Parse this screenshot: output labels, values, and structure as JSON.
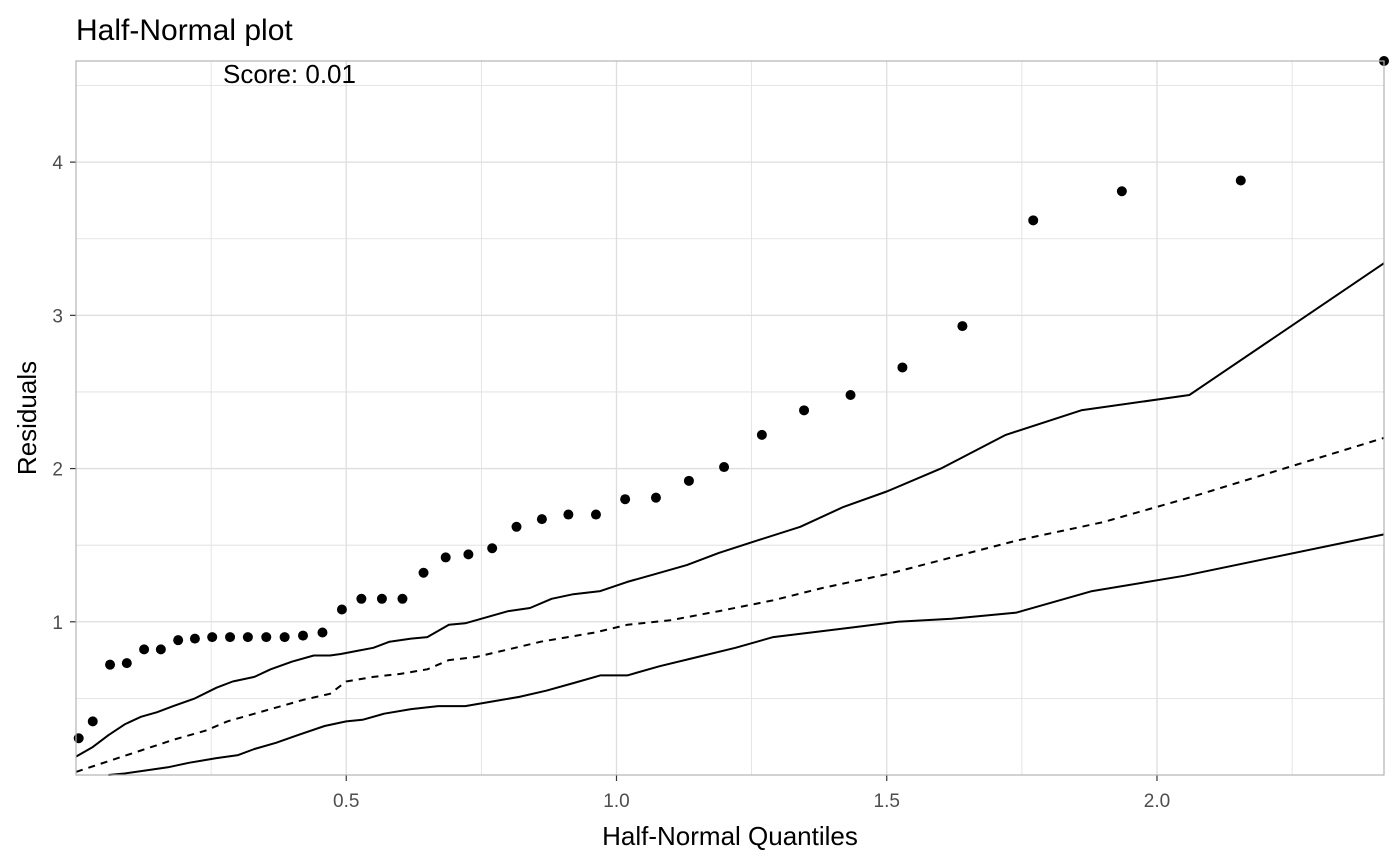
{
  "chart_data": {
    "type": "scatter",
    "title": "Half-Normal plot",
    "xlabel": "Half-Normal Quantiles",
    "ylabel": "Residuals",
    "annotation": "Score: 0.01",
    "xlim": [
      0.0,
      2.42
    ],
    "ylim": [
      0.0,
      4.66
    ],
    "x_ticks": [
      0.5,
      1.0,
      1.5,
      2.0
    ],
    "x_tick_labels": [
      "0.5",
      "1.0",
      "1.5",
      "2.0"
    ],
    "y_ticks": [
      1,
      2,
      3,
      4
    ],
    "y_tick_labels": [
      "1",
      "2",
      "3",
      "4"
    ],
    "grid": true,
    "colors": {
      "points": "#000000",
      "lines": "#000000",
      "grid": "#dedede",
      "panel_border": "#b3b3b3",
      "tick_label": "#4d4d4d"
    },
    "points": {
      "x": [
        0.005,
        0.031,
        0.063,
        0.094,
        0.126,
        0.157,
        0.189,
        0.22,
        0.252,
        0.285,
        0.318,
        0.352,
        0.386,
        0.42,
        0.456,
        0.492,
        0.528,
        0.566,
        0.604,
        0.643,
        0.684,
        0.726,
        0.77,
        0.815,
        0.862,
        0.911,
        0.962,
        1.016,
        1.073,
        1.134,
        1.199,
        1.269,
        1.347,
        1.433,
        1.529,
        1.64,
        1.771,
        1.935,
        2.155,
        2.42
      ],
      "y": [
        0.24,
        0.35,
        0.72,
        0.73,
        0.82,
        0.82,
        0.88,
        0.89,
        0.9,
        0.9,
        0.9,
        0.9,
        0.9,
        0.91,
        0.93,
        1.08,
        1.15,
        1.15,
        1.15,
        1.32,
        1.42,
        1.44,
        1.48,
        1.62,
        1.67,
        1.7,
        1.7,
        1.8,
        1.81,
        1.92,
        2.01,
        2.22,
        2.38,
        2.48,
        2.66,
        2.93,
        3.62,
        3.81,
        3.88,
        4.66
      ]
    },
    "series": [
      {
        "style": "solid",
        "x": [
          0.0,
          0.03,
          0.06,
          0.09,
          0.12,
          0.15,
          0.18,
          0.22,
          0.26,
          0.29,
          0.33,
          0.36,
          0.4,
          0.44,
          0.47,
          0.49,
          0.52,
          0.55,
          0.58,
          0.62,
          0.65,
          0.69,
          0.72,
          0.76,
          0.8,
          0.84,
          0.88,
          0.92,
          0.97,
          1.02,
          1.07,
          1.13,
          1.19,
          1.26,
          1.34,
          1.42,
          1.5,
          1.6,
          1.72,
          1.86,
          2.06,
          2.42
        ],
        "y": [
          0.12,
          0.18,
          0.26,
          0.33,
          0.38,
          0.41,
          0.45,
          0.5,
          0.57,
          0.61,
          0.64,
          0.69,
          0.74,
          0.78,
          0.78,
          0.79,
          0.81,
          0.83,
          0.87,
          0.89,
          0.9,
          0.98,
          0.99,
          1.03,
          1.07,
          1.09,
          1.15,
          1.18,
          1.2,
          1.26,
          1.31,
          1.37,
          1.45,
          1.53,
          1.62,
          1.75,
          1.85,
          2.0,
          2.22,
          2.38,
          2.48,
          3.34
        ]
      },
      {
        "style": "dashed",
        "x": [
          0.0,
          0.06,
          0.12,
          0.18,
          0.24,
          0.28,
          0.33,
          0.38,
          0.42,
          0.47,
          0.5,
          0.55,
          0.6,
          0.65,
          0.69,
          0.74,
          0.8,
          0.86,
          0.91,
          0.96,
          1.02,
          1.1,
          1.19,
          1.29,
          1.38,
          1.5,
          1.62,
          1.74,
          1.9,
          2.05,
          2.42
        ],
        "y": [
          0.02,
          0.09,
          0.16,
          0.23,
          0.29,
          0.35,
          0.4,
          0.45,
          0.49,
          0.53,
          0.61,
          0.64,
          0.66,
          0.69,
          0.75,
          0.77,
          0.82,
          0.87,
          0.9,
          0.93,
          0.98,
          1.01,
          1.07,
          1.14,
          1.22,
          1.31,
          1.42,
          1.53,
          1.65,
          1.8,
          2.2
        ]
      },
      {
        "style": "solid",
        "x": [
          0.06,
          0.09,
          0.13,
          0.17,
          0.21,
          0.26,
          0.3,
          0.33,
          0.37,
          0.41,
          0.46,
          0.5,
          0.53,
          0.57,
          0.62,
          0.67,
          0.72,
          0.77,
          0.82,
          0.87,
          0.92,
          0.97,
          1.02,
          1.08,
          1.15,
          1.22,
          1.29,
          1.36,
          1.43,
          1.52,
          1.62,
          1.74,
          1.88,
          2.05,
          2.42
        ],
        "y": [
          0.0,
          0.01,
          0.03,
          0.05,
          0.08,
          0.11,
          0.13,
          0.17,
          0.21,
          0.26,
          0.32,
          0.35,
          0.36,
          0.4,
          0.43,
          0.45,
          0.45,
          0.48,
          0.51,
          0.55,
          0.6,
          0.65,
          0.65,
          0.71,
          0.77,
          0.83,
          0.9,
          0.93,
          0.96,
          1.0,
          1.02,
          1.06,
          1.2,
          1.3,
          1.57
        ]
      }
    ]
  }
}
